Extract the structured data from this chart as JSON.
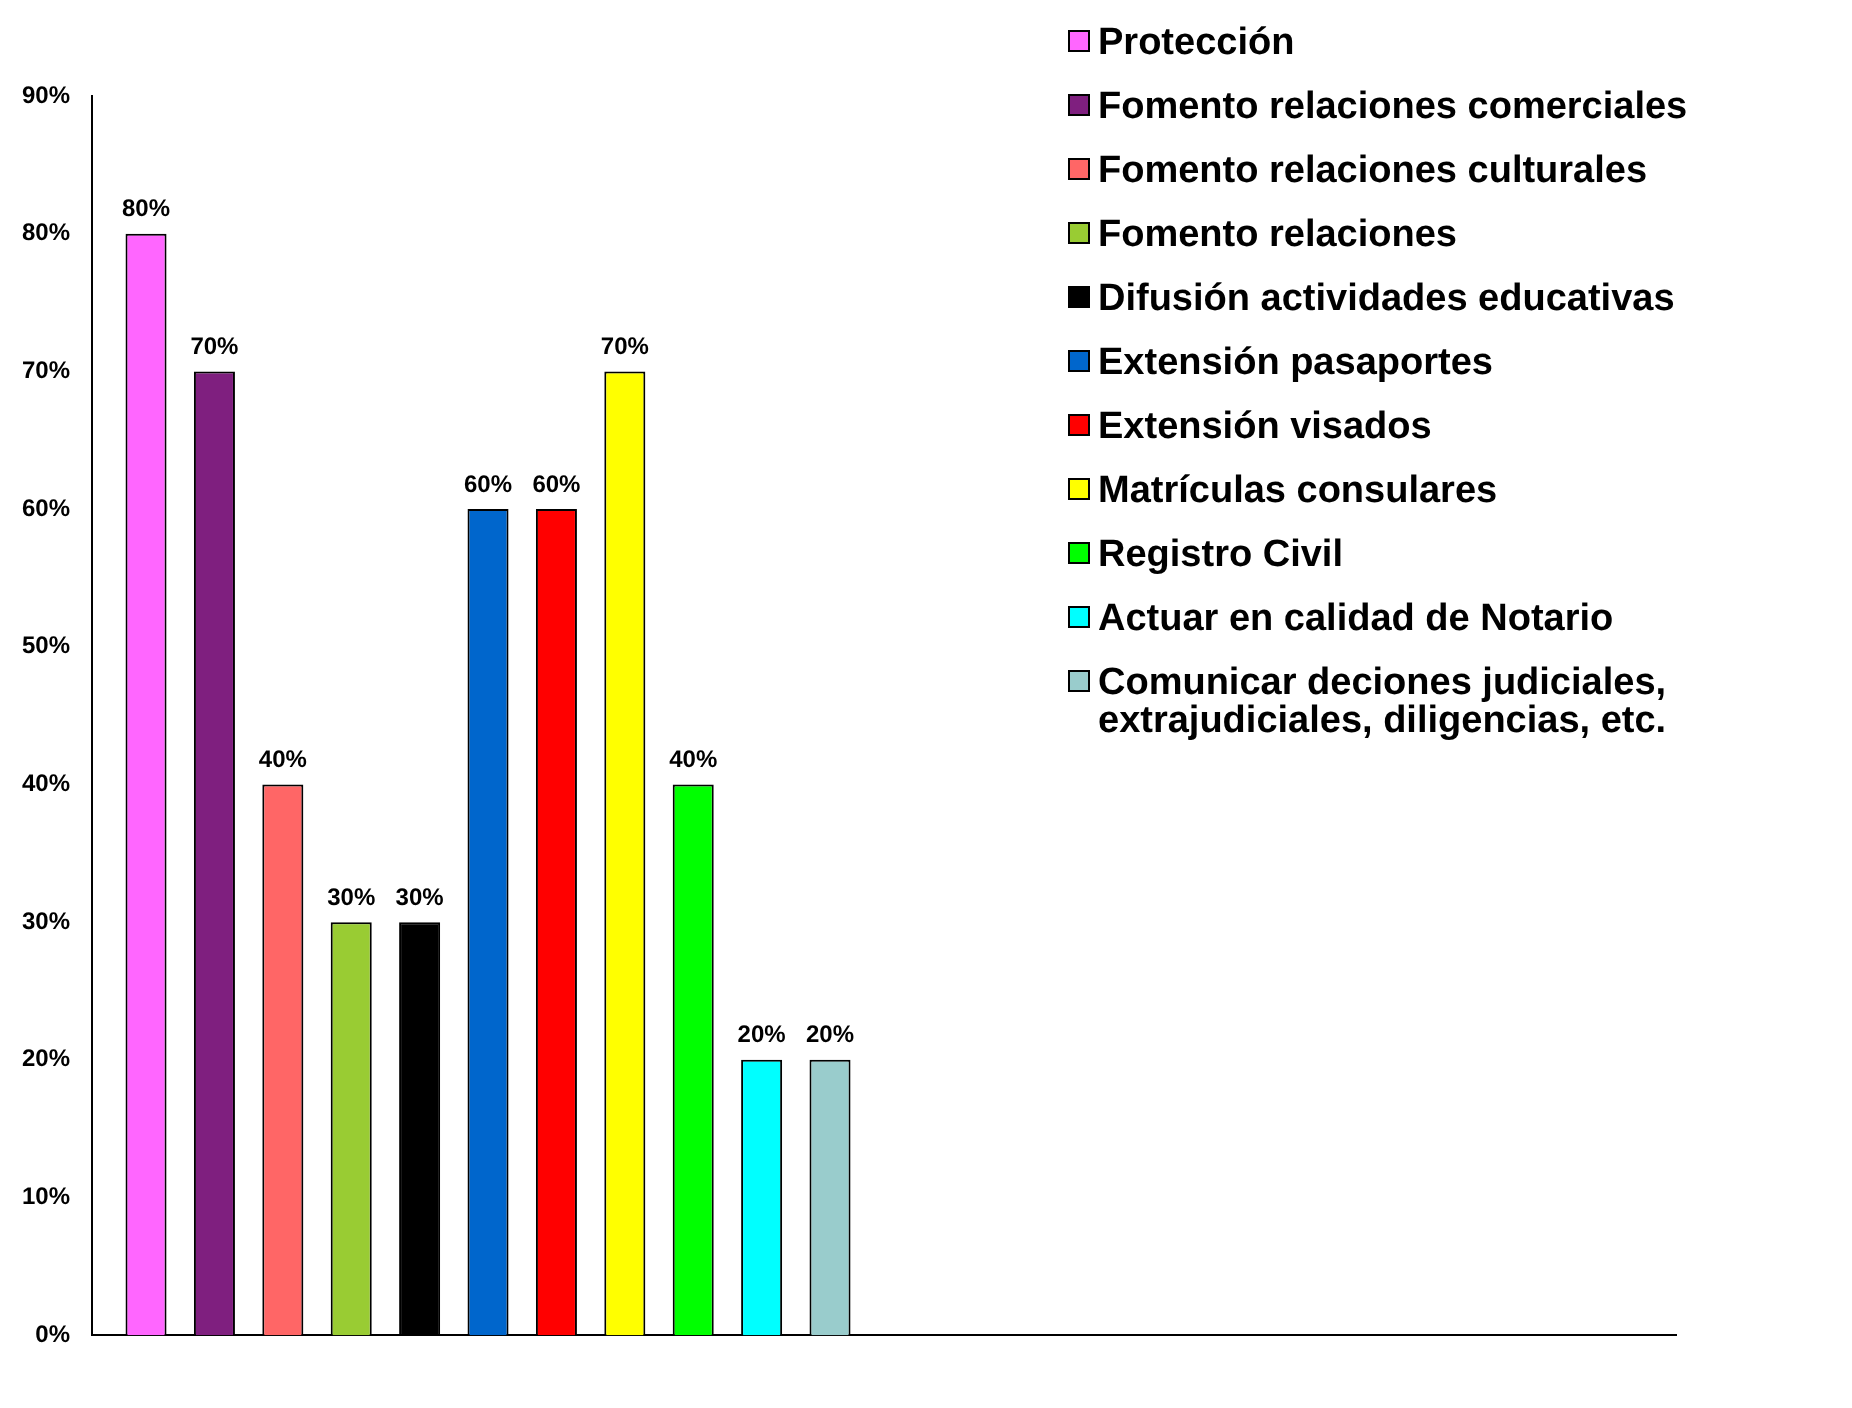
{
  "chart_data": {
    "type": "bar",
    "categories": [
      null,
      null
    ],
    "ylim": [
      0,
      90
    ],
    "yticks": [
      {
        "value": 0,
        "label": "0%"
      },
      {
        "value": 10,
        "label": "10%"
      },
      {
        "value": 20,
        "label": "20%"
      },
      {
        "value": 30,
        "label": "30%"
      },
      {
        "value": 40,
        "label": "40%"
      },
      {
        "value": 50,
        "label": "50%"
      },
      {
        "value": 60,
        "label": "60%"
      },
      {
        "value": 70,
        "label": "70%"
      },
      {
        "value": 80,
        "label": "80%"
      },
      {
        "value": 90,
        "label": "90%"
      }
    ],
    "grid": false,
    "legend": "top right",
    "series": [
      {
        "name": "Protección",
        "color": "#ff66ff",
        "values": [
          80,
          null
        ],
        "value_labels": [
          "80%",
          null
        ]
      },
      {
        "name": "Fomento relaciones comerciales",
        "color": "#7f1f7f",
        "values": [
          70,
          null
        ],
        "value_labels": [
          "70%",
          null
        ]
      },
      {
        "name": "Fomento relaciones culturales",
        "color": "#ff6666",
        "values": [
          40,
          null
        ],
        "value_labels": [
          "40%",
          null
        ]
      },
      {
        "name": "Fomento relaciones",
        "color": "#99cc33",
        "values": [
          30,
          null
        ],
        "value_labels": [
          "30%",
          null
        ]
      },
      {
        "name": "Difusión actividades educativas",
        "color": "#000000",
        "values": [
          30,
          null
        ],
        "value_labels": [
          "30%",
          null
        ]
      },
      {
        "name": "Extensión pasaportes",
        "color": "#0066cc",
        "values": [
          60,
          null
        ],
        "value_labels": [
          "60%",
          null
        ]
      },
      {
        "name": "Extensión visados",
        "color": "#ff0000",
        "values": [
          60,
          null
        ],
        "value_labels": [
          "60%",
          null
        ]
      },
      {
        "name": "Matrículas consulares",
        "color": "#ffff00",
        "values": [
          70,
          null
        ],
        "value_labels": [
          "70%",
          null
        ]
      },
      {
        "name": "Registro Civil",
        "color": "#00ff00",
        "values": [
          40,
          null
        ],
        "value_labels": [
          "40%",
          null
        ]
      },
      {
        "name": "Actuar en calidad de Notario",
        "color": "#00ffff",
        "values": [
          20,
          null
        ],
        "value_labels": [
          "20%",
          null
        ]
      },
      {
        "name": "Comunicar deciones judiciales, extrajudiciales, diligencias, etc.",
        "color": "#99cccc",
        "values": [
          20,
          null
        ],
        "value_labels": [
          "20%",
          null
        ]
      }
    ]
  }
}
